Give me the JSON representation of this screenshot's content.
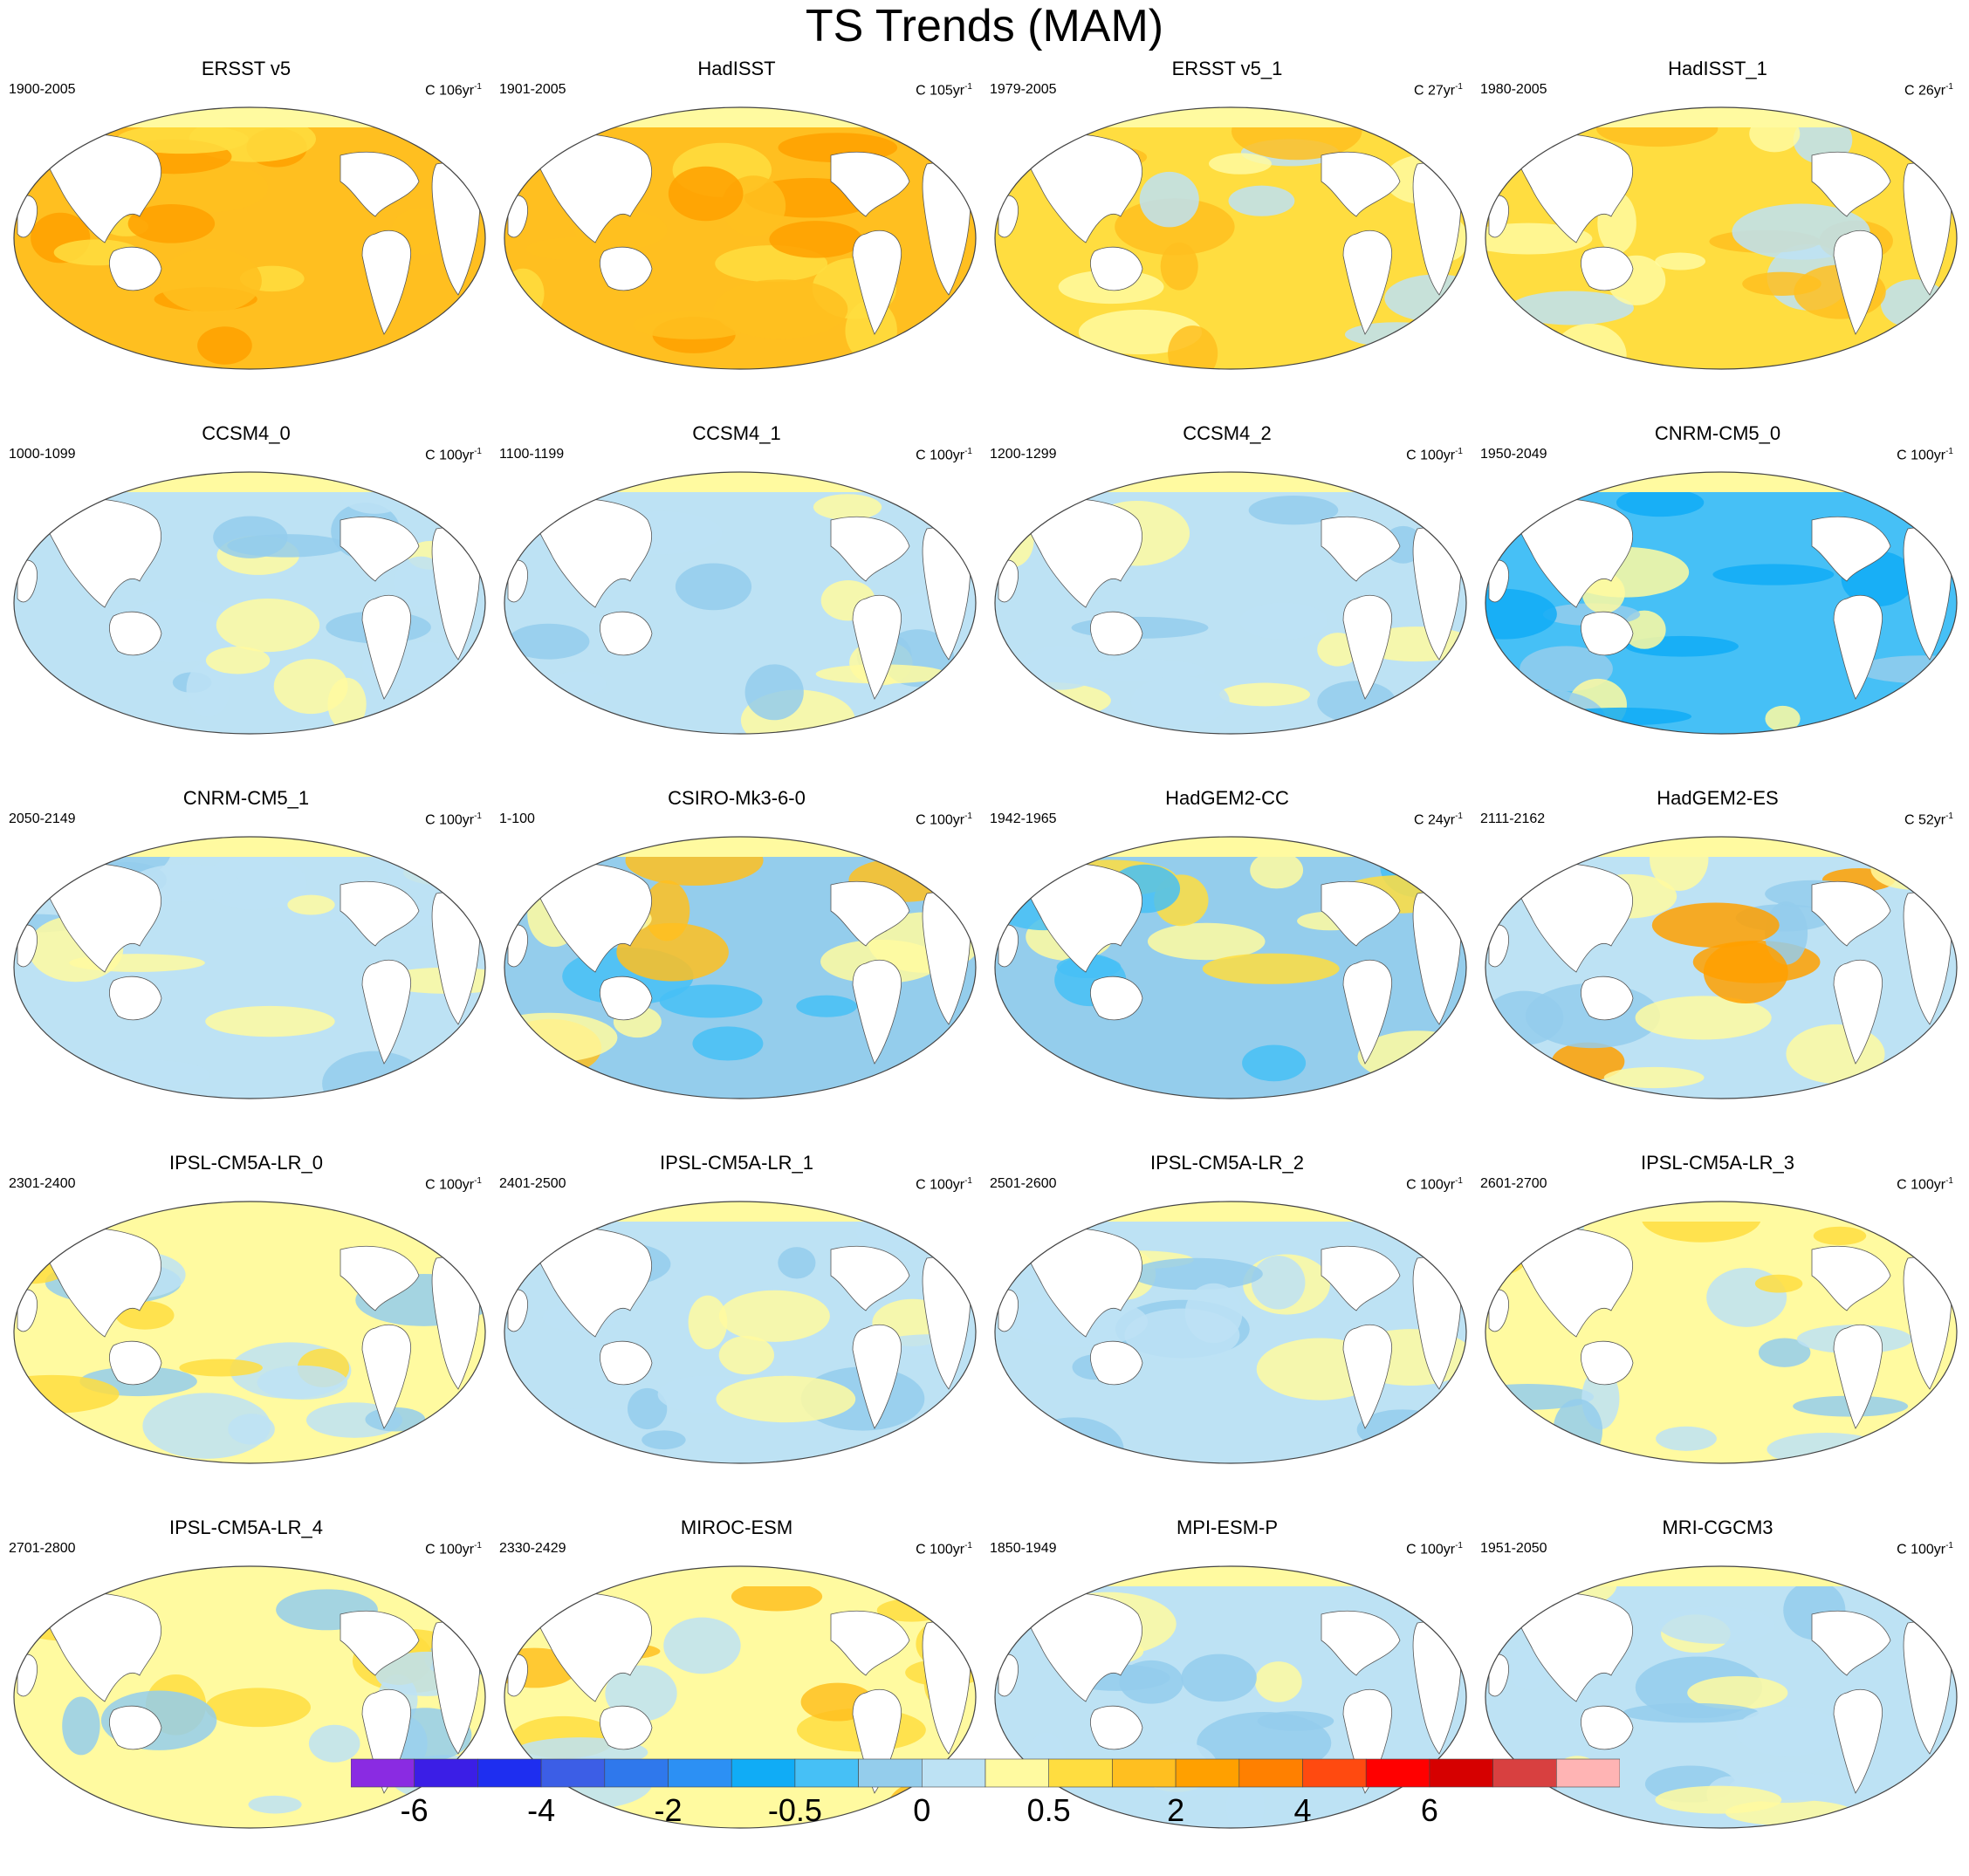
{
  "title": "TS Trends (MAM)",
  "units_prefix": "C ",
  "units_suffix": "yr",
  "units_exponent": "-1",
  "panels": [
    {
      "name": "ERSST v5",
      "period": "1900-2005",
      "trend_len": "106",
      "pattern": "warm-strong"
    },
    {
      "name": "HadISST",
      "period": "1901-2005",
      "trend_len": "105",
      "pattern": "warm-strong"
    },
    {
      "name": "ERSST v5_1",
      "period": "1979-2005",
      "trend_len": "27",
      "pattern": "warm-mixed"
    },
    {
      "name": "HadISST_1",
      "period": "1980-2005",
      "trend_len": "26",
      "pattern": "warm-mixed"
    },
    {
      "name": "CCSM4_0",
      "period": "1000-1099",
      "trend_len": "100",
      "pattern": "cool-mixed"
    },
    {
      "name": "CCSM4_1",
      "period": "1100-1199",
      "trend_len": "100",
      "pattern": "cool-mixed"
    },
    {
      "name": "CCSM4_2",
      "period": "1200-1299",
      "trend_len": "100",
      "pattern": "cool-mixed"
    },
    {
      "name": "CNRM-CM5_0",
      "period": "1950-2049",
      "trend_len": "100",
      "pattern": "cool-strong"
    },
    {
      "name": "CNRM-CM5_1",
      "period": "2050-2149",
      "trend_len": "100",
      "pattern": "cool-mixed"
    },
    {
      "name": "CSIRO-Mk3-6-0",
      "period": "1-100",
      "trend_len": "100",
      "pattern": "enso-mixed"
    },
    {
      "name": "HadGEM2-CC",
      "period": "1942-1965",
      "trend_len": "24",
      "pattern": "noisy-cool"
    },
    {
      "name": "HadGEM2-ES",
      "period": "2111-2162",
      "trend_len": "52",
      "pattern": "noisy-mixed"
    },
    {
      "name": "IPSL-CM5A-LR_0",
      "period": "2301-2400",
      "trend_len": "100",
      "pattern": "mixed"
    },
    {
      "name": "IPSL-CM5A-LR_1",
      "period": "2401-2500",
      "trend_len": "100",
      "pattern": "cool-mixed"
    },
    {
      "name": "IPSL-CM5A-LR_2",
      "period": "2501-2600",
      "trend_len": "100",
      "pattern": "cool-mixed"
    },
    {
      "name": "IPSL-CM5A-LR_3",
      "period": "2601-2700",
      "trend_len": "100",
      "pattern": "mixed"
    },
    {
      "name": "IPSL-CM5A-LR_4",
      "period": "2701-2800",
      "trend_len": "100",
      "pattern": "mixed"
    },
    {
      "name": "MIROC-ESM",
      "period": "2330-2429",
      "trend_len": "100",
      "pattern": "warm-weak"
    },
    {
      "name": "MPI-ESM-P",
      "period": "1850-1949",
      "trend_len": "100",
      "pattern": "cool-mixed"
    },
    {
      "name": "MRI-CGCM3",
      "period": "1951-2050",
      "trend_len": "100",
      "pattern": "cool-mixed"
    }
  ],
  "colorbar": {
    "colors": [
      "#8a2be2",
      "#3b1ee6",
      "#1e2ef0",
      "#3c5ee6",
      "#2f78ec",
      "#2c90f4",
      "#10acf6",
      "#46c0f6",
      "#94cdec",
      "#bde2f4",
      "#fffaa0",
      "#ffdd40",
      "#ffbf20",
      "#ffa000",
      "#ff8000",
      "#ff4a10",
      "#ff0000",
      "#d60000",
      "#d84040",
      "#ffb4b4"
    ],
    "labels": [
      "-6",
      "-4",
      "-2",
      "-0.5",
      "0",
      "0.5",
      "2",
      "4",
      "6"
    ]
  }
}
